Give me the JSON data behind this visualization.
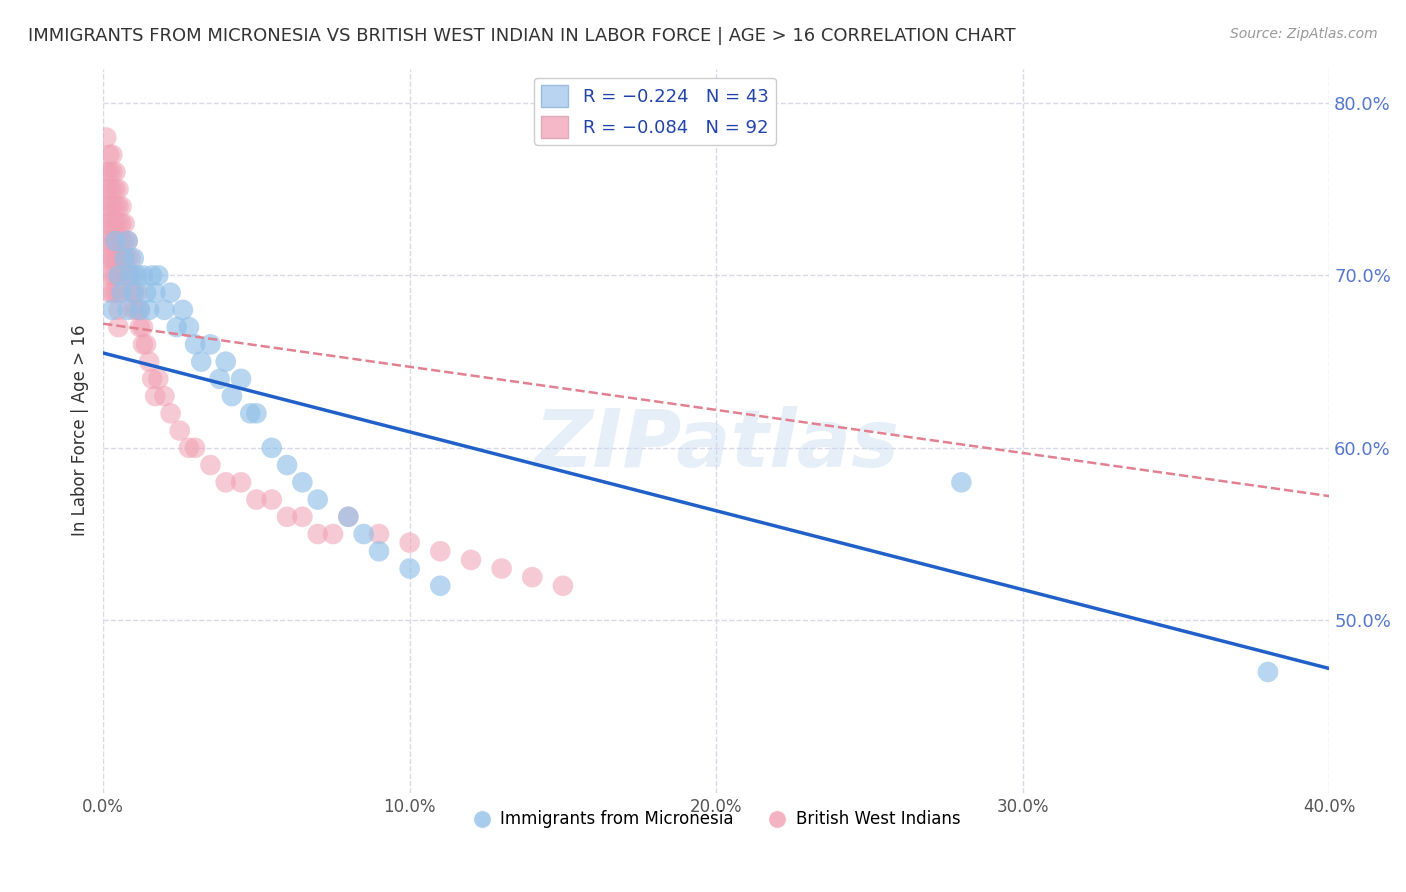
{
  "title": "IMMIGRANTS FROM MICRONESIA VS BRITISH WEST INDIAN IN LABOR FORCE | AGE > 16 CORRELATION CHART",
  "source": "Source: ZipAtlas.com",
  "ylabel": "In Labor Force | Age > 16",
  "xlim": [
    0.0,
    0.4
  ],
  "ylim": [
    0.4,
    0.82
  ],
  "xticks": [
    0.0,
    0.1,
    0.2,
    0.3,
    0.4
  ],
  "yticks": [
    0.5,
    0.6,
    0.7,
    0.8
  ],
  "xtick_labels": [
    "0.0%",
    "10.0%",
    "20.0%",
    "30.0%",
    "40.0%"
  ],
  "ytick_labels": [
    "50.0%",
    "60.0%",
    "70.0%",
    "80.0%"
  ],
  "micronesia_color": "#92c0e8",
  "bwi_color": "#f0a0b4",
  "trend_micronesia_color": "#2060c8",
  "trend_bwi_color": "#e08090",
  "background_color": "#ffffff",
  "grid_color": "#d8d8e8",
  "watermark": "ZIPatlas",
  "micronesia_x": [
    0.003,
    0.004,
    0.005,
    0.006,
    0.007,
    0.008,
    0.008,
    0.009,
    0.01,
    0.01,
    0.011,
    0.012,
    0.013,
    0.014,
    0.015,
    0.016,
    0.017,
    0.018,
    0.02,
    0.022,
    0.024,
    0.026,
    0.028,
    0.03,
    0.032,
    0.035,
    0.038,
    0.04,
    0.042,
    0.045,
    0.048,
    0.05,
    0.055,
    0.06,
    0.065,
    0.07,
    0.08,
    0.085,
    0.09,
    0.1,
    0.11,
    0.28,
    0.38
  ],
  "micronesia_y": [
    0.68,
    0.72,
    0.7,
    0.69,
    0.71,
    0.68,
    0.72,
    0.7,
    0.69,
    0.71,
    0.7,
    0.68,
    0.7,
    0.69,
    0.68,
    0.7,
    0.69,
    0.7,
    0.68,
    0.69,
    0.67,
    0.68,
    0.67,
    0.66,
    0.65,
    0.66,
    0.64,
    0.65,
    0.63,
    0.64,
    0.62,
    0.62,
    0.6,
    0.59,
    0.58,
    0.57,
    0.56,
    0.55,
    0.54,
    0.53,
    0.52,
    0.58,
    0.47
  ],
  "bwi_x": [
    0.001,
    0.001,
    0.001,
    0.001,
    0.001,
    0.001,
    0.001,
    0.002,
    0.002,
    0.002,
    0.002,
    0.002,
    0.002,
    0.002,
    0.002,
    0.002,
    0.003,
    0.003,
    0.003,
    0.003,
    0.003,
    0.003,
    0.003,
    0.003,
    0.003,
    0.004,
    0.004,
    0.004,
    0.004,
    0.004,
    0.004,
    0.004,
    0.004,
    0.005,
    0.005,
    0.005,
    0.005,
    0.005,
    0.005,
    0.005,
    0.005,
    0.005,
    0.006,
    0.006,
    0.006,
    0.006,
    0.007,
    0.007,
    0.007,
    0.007,
    0.008,
    0.008,
    0.008,
    0.009,
    0.009,
    0.009,
    0.01,
    0.01,
    0.01,
    0.011,
    0.011,
    0.012,
    0.012,
    0.013,
    0.013,
    0.014,
    0.015,
    0.016,
    0.017,
    0.018,
    0.02,
    0.022,
    0.025,
    0.028,
    0.03,
    0.035,
    0.04,
    0.045,
    0.05,
    0.055,
    0.06,
    0.065,
    0.07,
    0.075,
    0.08,
    0.09,
    0.1,
    0.11,
    0.12,
    0.13,
    0.14,
    0.15
  ],
  "bwi_y": [
    0.78,
    0.76,
    0.75,
    0.74,
    0.73,
    0.72,
    0.71,
    0.77,
    0.76,
    0.75,
    0.74,
    0.73,
    0.72,
    0.71,
    0.7,
    0.69,
    0.77,
    0.76,
    0.75,
    0.74,
    0.73,
    0.72,
    0.71,
    0.7,
    0.69,
    0.76,
    0.75,
    0.74,
    0.73,
    0.72,
    0.71,
    0.7,
    0.69,
    0.75,
    0.74,
    0.73,
    0.72,
    0.71,
    0.7,
    0.69,
    0.68,
    0.67,
    0.74,
    0.73,
    0.72,
    0.71,
    0.73,
    0.72,
    0.71,
    0.7,
    0.72,
    0.71,
    0.7,
    0.71,
    0.7,
    0.69,
    0.7,
    0.69,
    0.68,
    0.69,
    0.68,
    0.68,
    0.67,
    0.67,
    0.66,
    0.66,
    0.65,
    0.64,
    0.63,
    0.64,
    0.63,
    0.62,
    0.61,
    0.6,
    0.6,
    0.59,
    0.58,
    0.58,
    0.57,
    0.57,
    0.56,
    0.56,
    0.55,
    0.55,
    0.56,
    0.55,
    0.545,
    0.54,
    0.535,
    0.53,
    0.525,
    0.52
  ],
  "trend_mic_x0": 0.0,
  "trend_mic_x1": 0.4,
  "trend_mic_y0": 0.655,
  "trend_mic_y1": 0.472,
  "trend_bwi_x0": 0.0,
  "trend_bwi_x1": 0.4,
  "trend_bwi_y0": 0.672,
  "trend_bwi_y1": 0.572
}
